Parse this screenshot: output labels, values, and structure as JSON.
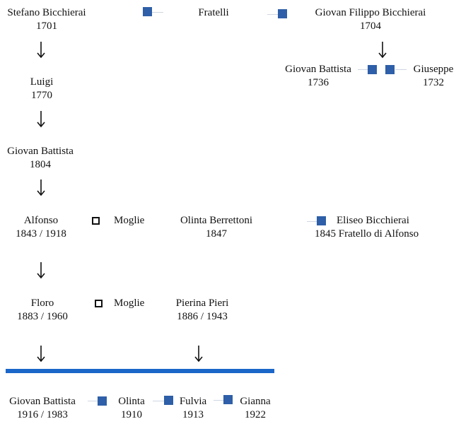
{
  "colors": {
    "sibling_marker": "#2e5fa8",
    "generation_bar": "#1a66c9"
  },
  "top": {
    "stefano": {
      "name": "Stefano Bicchierai",
      "year": "1701"
    },
    "fratelli_label": "Fratelli",
    "giovan_filippo": {
      "name": "Giovan Filippo Bicchierai",
      "year": "1704"
    }
  },
  "branch_right": {
    "giovan_battista": {
      "name": "Giovan Battista",
      "year": "1736"
    },
    "giuseppe": {
      "name": "Giuseppe",
      "year": "1732"
    }
  },
  "line": {
    "luigi": {
      "name": "Luigi",
      "year": "1770"
    },
    "giovan_battista": {
      "name": "Giovan Battista",
      "year": "1804"
    },
    "alfonso": {
      "name": "Alfonso",
      "years": "1843 / 1918"
    },
    "floro": {
      "name": "Floro",
      "years": "1883 / 1960"
    }
  },
  "spouses": {
    "moglie_label": "Moglie",
    "olinta_berrettoni": {
      "name": "Olinta Berrettoni",
      "year": "1847"
    },
    "pierina_pieri": {
      "name": "Pierina Pieri",
      "years": "1886 / 1943"
    }
  },
  "eliseo": {
    "name": "Eliseo Bicchierai",
    "detail": "1845  Fratello di Alfonso"
  },
  "children": [
    {
      "name": "Giovan Battista",
      "years": "1916 / 1983"
    },
    {
      "name": "Olinta",
      "years": "1910"
    },
    {
      "name": "Fulvia",
      "years": "1913"
    },
    {
      "name": "Gianna",
      "years": "1922"
    }
  ]
}
